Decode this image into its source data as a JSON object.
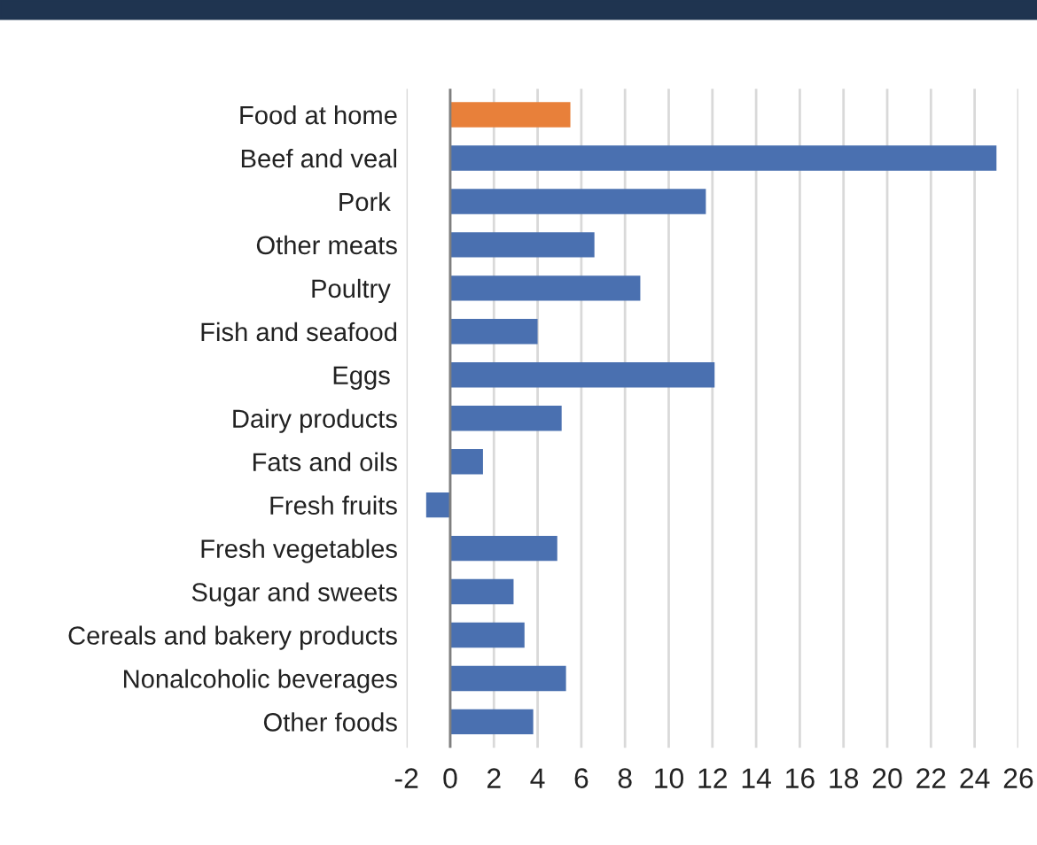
{
  "chart_data": {
    "type": "bar",
    "orientation": "horizontal",
    "categories": [
      "Food at home",
      "Beef and veal",
      "Pork ",
      "Other meats",
      "Poultry ",
      "Fish and seafood",
      "Eggs ",
      "Dairy products",
      "Fats and oils",
      "Fresh fruits",
      "Fresh vegetables",
      "Sugar and sweets",
      "Cereals and bakery products",
      "Nonalcoholic beverages",
      "Other foods"
    ],
    "values": [
      5.5,
      25.0,
      11.7,
      6.6,
      8.7,
      4.0,
      12.1,
      5.1,
      1.5,
      -1.1,
      4.9,
      2.9,
      3.4,
      5.3,
      3.8
    ],
    "colors": [
      "#e8803a",
      "#4a70b0",
      "#4a70b0",
      "#4a70b0",
      "#4a70b0",
      "#4a70b0",
      "#4a70b0",
      "#4a70b0",
      "#4a70b0",
      "#4a70b0",
      "#4a70b0",
      "#4a70b0",
      "#4a70b0",
      "#4a70b0",
      "#4a70b0"
    ],
    "xlim": [
      -2,
      26
    ],
    "xticks": [
      -2,
      0,
      2,
      4,
      6,
      8,
      10,
      12,
      14,
      16,
      18,
      20,
      22,
      24,
      26
    ],
    "grid": "x"
  }
}
